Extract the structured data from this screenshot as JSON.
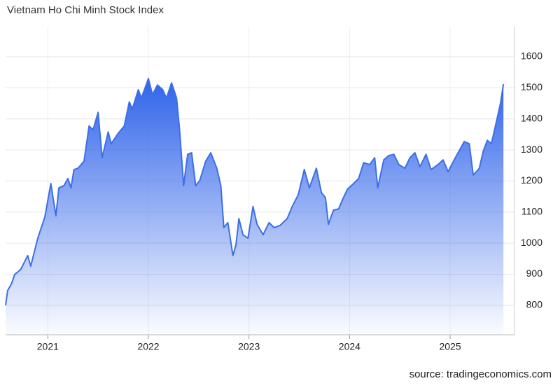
{
  "chart_data": {
    "type": "area",
    "title": "Vietnam Ho Chi Minh Stock Index",
    "source": "source: tradingeconomics.com",
    "xlim": [
      2020.58,
      2025.64
    ],
    "xticks": [
      2021,
      2022,
      2023,
      2024,
      2025
    ],
    "ylim": [
      705,
      1697
    ],
    "yticks": [
      800,
      900,
      1000,
      1100,
      1200,
      1300,
      1400,
      1500,
      1600
    ],
    "grid": true,
    "series": [
      {
        "color": "#3d6fe6",
        "x": [
          2020.58,
          2020.6,
          2020.64,
          2020.67,
          2020.73,
          2020.8,
          2020.83,
          2020.9,
          2020.97,
          2021.03,
          2021.08,
          2021.11,
          2021.16,
          2021.2,
          2021.23,
          2021.26,
          2021.3,
          2021.36,
          2021.41,
          2021.45,
          2021.5,
          2021.54,
          2021.6,
          2021.63,
          2021.7,
          2021.76,
          2021.81,
          2021.84,
          2021.9,
          2021.93,
          2022.0,
          2022.04,
          2022.09,
          2022.14,
          2022.18,
          2022.23,
          2022.28,
          2022.31,
          2022.35,
          2022.39,
          2022.43,
          2022.47,
          2022.51,
          2022.57,
          2022.62,
          2022.68,
          2022.72,
          2022.75,
          2022.79,
          2022.84,
          2022.87,
          2022.9,
          2022.94,
          2022.99,
          2023.04,
          2023.08,
          2023.14,
          2023.2,
          2023.25,
          2023.31,
          2023.38,
          2023.43,
          2023.49,
          2023.55,
          2023.6,
          2023.67,
          2023.72,
          2023.76,
          2023.79,
          2023.84,
          2023.89,
          2023.93,
          2023.98,
          2024.04,
          2024.09,
          2024.14,
          2024.2,
          2024.25,
          2024.28,
          2024.34,
          2024.39,
          2024.44,
          2024.49,
          2024.55,
          2024.6,
          2024.65,
          2024.7,
          2024.76,
          2024.81,
          2024.88,
          2024.93,
          2024.98,
          2025.04,
          2025.09,
          2025.14,
          2025.19,
          2025.23,
          2025.29,
          2025.33,
          2025.37,
          2025.41,
          2025.45,
          2025.5,
          2025.53
        ],
        "values": [
          800,
          847,
          870,
          899,
          915,
          960,
          926,
          1016,
          1084,
          1192,
          1088,
          1178,
          1185,
          1208,
          1178,
          1237,
          1241,
          1264,
          1377,
          1365,
          1421,
          1275,
          1358,
          1320,
          1354,
          1377,
          1455,
          1432,
          1494,
          1467,
          1530,
          1478,
          1509,
          1495,
          1467,
          1516,
          1467,
          1365,
          1185,
          1286,
          1291,
          1185,
          1201,
          1264,
          1291,
          1241,
          1185,
          1050,
          1066,
          960,
          994,
          1079,
          1027,
          1016,
          1118,
          1061,
          1027,
          1066,
          1050,
          1057,
          1079,
          1118,
          1156,
          1237,
          1178,
          1241,
          1163,
          1147,
          1061,
          1106,
          1110,
          1140,
          1174,
          1192,
          1208,
          1259,
          1253,
          1275,
          1178,
          1268,
          1282,
          1286,
          1253,
          1241,
          1275,
          1291,
          1246,
          1286,
          1237,
          1253,
          1268,
          1230,
          1268,
          1297,
          1327,
          1320,
          1219,
          1241,
          1297,
          1331,
          1320,
          1377,
          1449,
          1512
        ]
      }
    ]
  }
}
